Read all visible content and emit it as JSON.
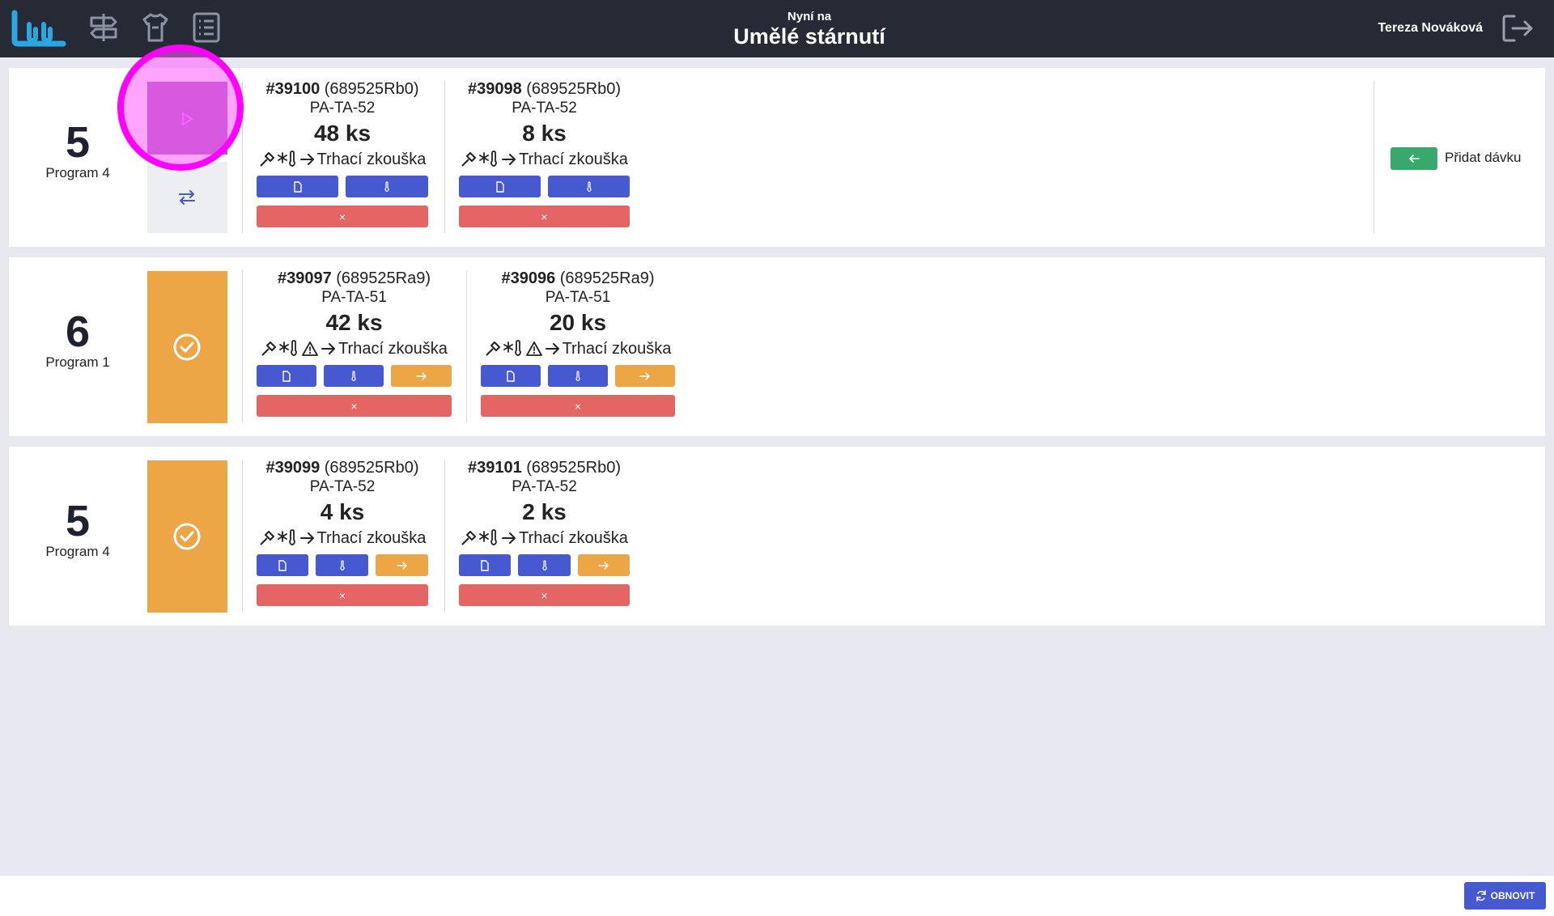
{
  "header": {
    "subtitle": "Nyní na",
    "title": "Umělé stárnutí",
    "user": "Tereza Nováková"
  },
  "groups": [
    {
      "number": "5",
      "program": "Program 4",
      "batches": [
        {
          "id": "#39100",
          "ref": " (689525Rb0)",
          "code": "PA-TA-52",
          "qty": "48 ks",
          "next": "Trhací zkouška",
          "warning": false
        },
        {
          "id": "#39098",
          "ref": " (689525Rb0)",
          "code": "PA-TA-52",
          "qty": "8 ks",
          "next": "Trhací zkouška",
          "warning": false
        }
      ]
    },
    {
      "number": "6",
      "program": "Program 1",
      "batches": [
        {
          "id": "#39097",
          "ref": " (689525Ra9)",
          "code": "PA-TA-51",
          "qty": "42 ks",
          "next": "Trhací zkouška",
          "warning": true
        },
        {
          "id": "#39096",
          "ref": " (689525Ra9)",
          "code": "PA-TA-51",
          "qty": "20 ks",
          "next": "Trhací zkouška",
          "warning": true
        }
      ]
    },
    {
      "number": "5",
      "program": "Program 4",
      "batches": [
        {
          "id": "#39099",
          "ref": " (689525Rb0)",
          "code": "PA-TA-52",
          "qty": "4 ks",
          "next": "Trhací zkouška",
          "warning": false
        },
        {
          "id": "#39101",
          "ref": " (689525Rb0)",
          "code": "PA-TA-52",
          "qty": "2 ks",
          "next": "Trhací zkouška",
          "warning": false
        }
      ]
    }
  ],
  "actions": {
    "add_batch_label": "Přidat dávku",
    "remove_glyph": "×",
    "refresh_label": "OBNOVIT"
  },
  "colors": {
    "header_bg": "#262a35",
    "blue": "#4659d1",
    "orange": "#eda645",
    "red": "#e56464",
    "green": "#39a86b",
    "purple": "#a75ab8",
    "highlight": "#ff00ff"
  },
  "icons": [
    "logo-icon",
    "signpost-icon",
    "hanger-icon",
    "list-icon",
    "logout-icon",
    "play-icon",
    "swap-icon",
    "check-circle-icon",
    "document-icon",
    "thermometer-icon",
    "arrow-right-icon",
    "hammer-icon",
    "snowflake-thermometer-icon",
    "warning-icon",
    "arrow-left-icon",
    "refresh-icon"
  ]
}
